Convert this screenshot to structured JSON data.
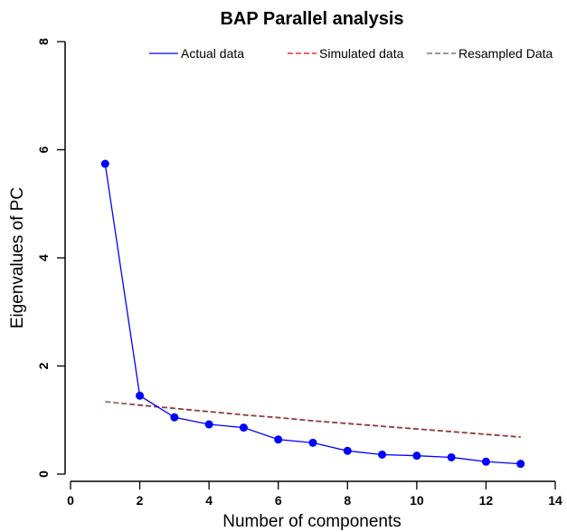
{
  "chart_data": {
    "type": "line",
    "title": "BAP Parallel analysis",
    "xlabel": "Number of components",
    "ylabel": "Eigenvalues of PC",
    "xlim": [
      0,
      14
    ],
    "ylim": [
      0,
      8
    ],
    "xticks": [
      0,
      2,
      4,
      6,
      8,
      10,
      12,
      14
    ],
    "yticks": [
      0,
      2,
      4,
      6,
      8
    ],
    "grid": false,
    "legend_position": "top",
    "series": [
      {
        "name": "Actual data",
        "color": "#0000ff",
        "line_style": "solid",
        "markers": true,
        "x": [
          1,
          2,
          3,
          4,
          5,
          6,
          7,
          8,
          9,
          10,
          11,
          12,
          13
        ],
        "y": [
          5.74,
          1.45,
          1.05,
          0.92,
          0.86,
          0.64,
          0.58,
          0.43,
          0.36,
          0.34,
          0.31,
          0.23,
          0.19
        ]
      },
      {
        "name": "Simulated data",
        "color": "#ff0000",
        "line_style": "dashed",
        "markers": false,
        "x": [
          1,
          2,
          3,
          4,
          5,
          6,
          7,
          8,
          9,
          10,
          11,
          12,
          13
        ],
        "y": [
          1.34,
          1.28,
          1.22,
          1.16,
          1.1,
          1.05,
          0.99,
          0.94,
          0.89,
          0.84,
          0.79,
          0.74,
          0.69
        ]
      },
      {
        "name": "Resampled Data",
        "color": "#5a5a5a",
        "line_style": "dashed",
        "markers": false,
        "x": [
          1,
          2,
          3,
          4,
          5,
          6,
          7,
          8,
          9,
          10,
          11,
          12,
          13
        ],
        "y": [
          1.34,
          1.27,
          1.21,
          1.15,
          1.09,
          1.04,
          0.98,
          0.93,
          0.88,
          0.83,
          0.78,
          0.73,
          0.68
        ]
      }
    ]
  }
}
